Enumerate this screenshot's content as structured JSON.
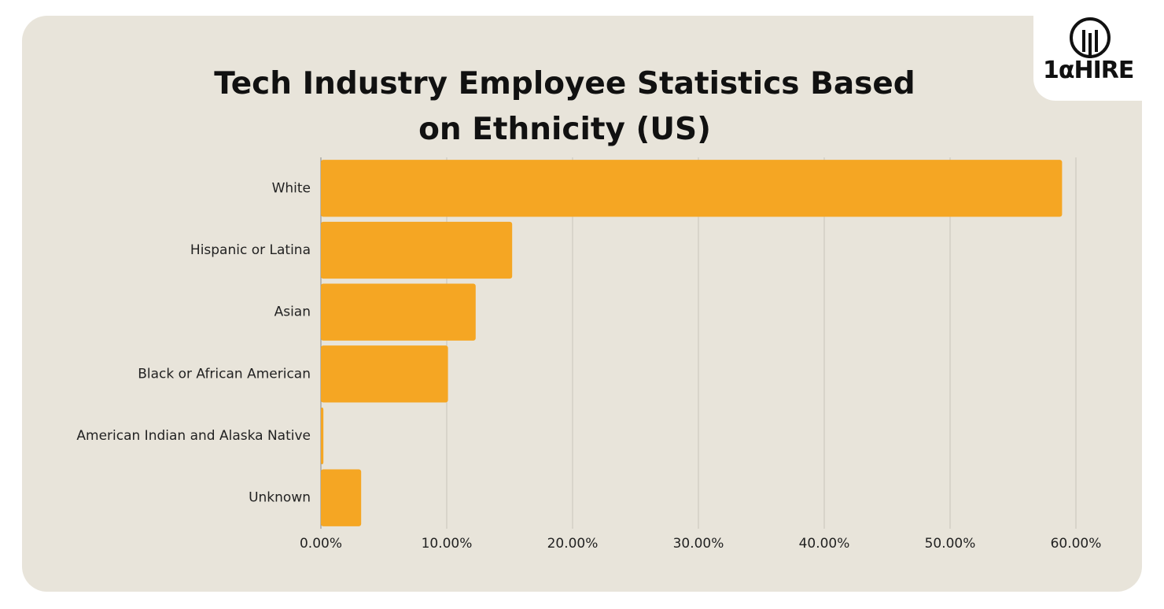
{
  "logo": "1αHIRE",
  "chart_data": {
    "type": "hbar",
    "title": "Tech Industry Employee Statistics Based on Ethnicity (US)",
    "categories": [
      "White",
      "Hispanic or Latina",
      "Asian",
      "Black or African American",
      "American Indian and Alaska Native",
      "Unknown"
    ],
    "values": [
      58.9,
      15.2,
      12.3,
      10.1,
      0.2,
      3.2
    ],
    "color": "#f5a623",
    "xlim": [
      0,
      60
    ],
    "xticks": [
      {
        "value": 0,
        "label": "0.00%"
      },
      {
        "value": 10,
        "label": "10.00%"
      },
      {
        "value": 20,
        "label": "20.00%"
      },
      {
        "value": 30,
        "label": "30.00%"
      },
      {
        "value": 40,
        "label": "40.00%"
      },
      {
        "value": 50,
        "label": "50.00%"
      },
      {
        "value": 60,
        "label": "60.00%"
      }
    ],
    "grid": true
  }
}
